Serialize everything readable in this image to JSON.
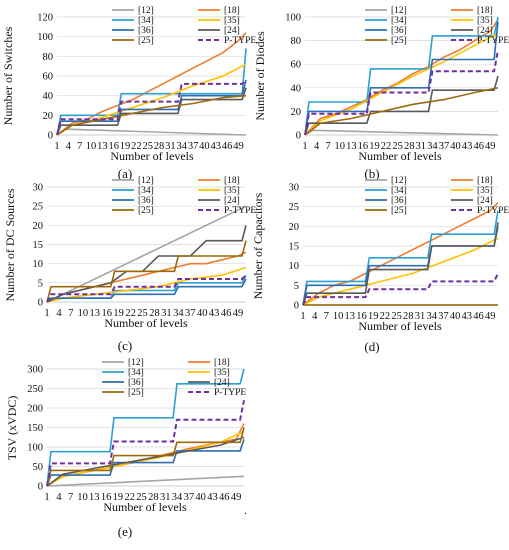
{
  "figure": {
    "stray_mark": "."
  },
  "legend_order": [
    "[12]",
    "[18]",
    "[34]",
    "[35]",
    "[36]",
    "[24]",
    "[25]",
    "P-TYPE"
  ],
  "colors": {
    "[12]": "#a5a5a5",
    "[18]": "#ed7d31",
    "[34]": "#2e9fd0",
    "[35]": "#ffc000",
    "[36]": "#2f6eb5",
    "[24]": "#595959",
    "[25]": "#9c6a0c",
    "P-TYPE": "#7030a0"
  },
  "x_tick_labels": [
    "1",
    "4",
    "7",
    "10",
    "13",
    "16",
    "19",
    "22",
    "25",
    "28",
    "31",
    "34",
    "37",
    "40",
    "43",
    "46",
    "49"
  ],
  "chart_data": [
    {
      "type": "line",
      "caption": "(a)",
      "xlabel": "Number of levels",
      "ylabel": "Number of Switches",
      "xlim": [
        1,
        51
      ],
      "ylim": [
        0,
        120
      ],
      "yticks": [
        0,
        20,
        40,
        60,
        80,
        100,
        120
      ],
      "series": [
        {
          "name": "[12]",
          "x": [
            1,
            3,
            51
          ],
          "y": [
            0,
            6,
            0
          ]
        },
        {
          "name": "[18]",
          "x": [
            1,
            5,
            9,
            13,
            17,
            21,
            25,
            29,
            33,
            37,
            41,
            45,
            49,
            51
          ],
          "y": [
            0,
            12,
            16,
            24,
            30,
            36,
            44,
            52,
            60,
            68,
            76,
            84,
            96,
            104
          ]
        },
        {
          "name": "[34]",
          "x": [
            1,
            2,
            17,
            18,
            50,
            51
          ],
          "y": [
            0,
            20,
            20,
            42,
            42,
            88
          ]
        },
        {
          "name": "[35]",
          "x": [
            1,
            5,
            13,
            21,
            29,
            37,
            45,
            51
          ],
          "y": [
            0,
            10,
            18,
            28,
            38,
            50,
            60,
            72
          ]
        },
        {
          "name": "[36]",
          "x": [
            1,
            2,
            17,
            18,
            33,
            34,
            50,
            51
          ],
          "y": [
            0,
            14,
            14,
            26,
            26,
            40,
            40,
            56
          ]
        },
        {
          "name": "[24]",
          "x": [
            1,
            2,
            17,
            18,
            33,
            34,
            50,
            51
          ],
          "y": [
            0,
            10,
            10,
            22,
            22,
            36,
            36,
            48
          ]
        },
        {
          "name": "[25]",
          "x": [
            1,
            5,
            13,
            21,
            29,
            37,
            45,
            51
          ],
          "y": [
            0,
            10,
            16,
            22,
            28,
            32,
            38,
            40
          ]
        },
        {
          "name": "P-TYPE",
          "x": [
            1,
            2,
            17,
            18,
            33,
            34,
            50,
            51
          ],
          "y": [
            0,
            16,
            16,
            34,
            34,
            52,
            52,
            56
          ]
        }
      ]
    },
    {
      "type": "line",
      "caption": "(b)",
      "xlabel": "Number of levels",
      "ylabel": "Number of Diodes",
      "xlim": [
        1,
        51
      ],
      "ylim": [
        0,
        100
      ],
      "yticks": [
        0,
        20,
        40,
        60,
        80,
        100
      ],
      "series": [
        {
          "name": "[12]",
          "x": [
            1,
            3,
            51
          ],
          "y": [
            0,
            4,
            0
          ]
        },
        {
          "name": "[18]",
          "x": [
            1,
            5,
            9,
            13,
            17,
            21,
            25,
            29,
            33,
            37,
            41,
            45,
            49,
            51
          ],
          "y": [
            0,
            14,
            18,
            24,
            30,
            38,
            44,
            52,
            58,
            66,
            72,
            80,
            88,
            98
          ]
        },
        {
          "name": "[34]",
          "x": [
            1,
            2,
            17,
            18,
            33,
            34,
            50,
            51
          ],
          "y": [
            0,
            28,
            28,
            56,
            56,
            84,
            84,
            100
          ]
        },
        {
          "name": "[35]",
          "x": [
            1,
            5,
            13,
            21,
            29,
            37,
            45,
            51
          ],
          "y": [
            0,
            12,
            22,
            36,
            50,
            62,
            76,
            86
          ]
        },
        {
          "name": "[36]",
          "x": [
            1,
            2,
            17,
            18,
            33,
            34,
            50,
            51
          ],
          "y": [
            0,
            20,
            20,
            40,
            40,
            64,
            64,
            96
          ]
        },
        {
          "name": "[24]",
          "x": [
            1,
            2,
            17,
            18,
            33,
            34,
            50,
            51
          ],
          "y": [
            0,
            10,
            10,
            20,
            20,
            38,
            38,
            50
          ]
        },
        {
          "name": "[25]",
          "x": [
            1,
            5,
            13,
            21,
            29,
            37,
            45,
            51
          ],
          "y": [
            0,
            10,
            14,
            20,
            26,
            30,
            36,
            40
          ]
        },
        {
          "name": "P-TYPE",
          "x": [
            1,
            2,
            17,
            18,
            33,
            34,
            50,
            51
          ],
          "y": [
            0,
            18,
            18,
            36,
            36,
            54,
            54,
            72
          ]
        }
      ]
    },
    {
      "type": "line",
      "caption": "(c)",
      "xlabel": "Number of levels",
      "ylabel": "Number of DC Sources",
      "xlim": [
        1,
        51
      ],
      "ylim": [
        0,
        30
      ],
      "yticks": [
        0,
        5,
        10,
        15,
        20,
        25,
        30
      ],
      "series": [
        {
          "name": "[12]",
          "x": [
            1,
            51
          ],
          "y": [
            0,
            25
          ]
        },
        {
          "name": "[18]",
          "x": [
            1,
            5,
            9,
            13,
            17,
            21,
            25,
            29,
            33,
            37,
            41,
            45,
            49,
            51
          ],
          "y": [
            0,
            2,
            3,
            4,
            5,
            6,
            7,
            8,
            9,
            10,
            10,
            11,
            12,
            13
          ]
        },
        {
          "name": "[34]",
          "x": [
            1,
            2,
            17,
            18,
            33,
            34,
            50,
            51
          ],
          "y": [
            0,
            1,
            1,
            3,
            3,
            5,
            5,
            7
          ]
        },
        {
          "name": "[35]",
          "x": [
            1,
            5,
            13,
            21,
            29,
            37,
            45,
            51
          ],
          "y": [
            0,
            1,
            2,
            3,
            4,
            6,
            7,
            9
          ]
        },
        {
          "name": "[36]",
          "x": [
            1,
            2,
            17,
            18,
            33,
            34,
            50,
            51
          ],
          "y": [
            0,
            1,
            1,
            2,
            2,
            4,
            4,
            6
          ]
        },
        {
          "name": "[24]",
          "x": [
            1,
            5,
            9,
            13,
            17,
            21,
            25,
            29,
            33,
            37,
            41,
            45,
            50,
            51
          ],
          "y": [
            0,
            2,
            3,
            4,
            5,
            8,
            8,
            12,
            12,
            12,
            16,
            16,
            16,
            20
          ]
        },
        {
          "name": "[25]",
          "x": [
            1,
            2,
            17,
            18,
            33,
            34,
            50,
            51
          ],
          "y": [
            0,
            4,
            4,
            8,
            8,
            12,
            12,
            16
          ]
        },
        {
          "name": "P-TYPE",
          "x": [
            1,
            2,
            17,
            18,
            33,
            34,
            50,
            51
          ],
          "y": [
            0,
            2,
            2,
            4,
            4,
            6,
            6,
            7
          ]
        }
      ]
    },
    {
      "type": "line",
      "caption": "(d)",
      "xlabel": "Number of levels",
      "ylabel": "Number of Capacitors",
      "xlim": [
        1,
        51
      ],
      "ylim": [
        0,
        30
      ],
      "yticks": [
        0,
        5,
        10,
        15,
        20,
        25,
        30
      ],
      "series": [
        {
          "name": "[12]",
          "x": [
            1,
            51
          ],
          "y": [
            0,
            0
          ]
        },
        {
          "name": "[18]",
          "x": [
            1,
            5,
            9,
            13,
            17,
            21,
            25,
            29,
            33,
            37,
            41,
            45,
            49,
            51
          ],
          "y": [
            0,
            3,
            5,
            6,
            8,
            10,
            12,
            14,
            16,
            18,
            20,
            22,
            24,
            26
          ]
        },
        {
          "name": "[34]",
          "x": [
            1,
            2,
            17,
            18,
            33,
            34,
            50,
            51
          ],
          "y": [
            0,
            6,
            6,
            12,
            12,
            18,
            18,
            24
          ]
        },
        {
          "name": "[35]",
          "x": [
            1,
            5,
            13,
            21,
            29,
            37,
            45,
            51
          ],
          "y": [
            0,
            2,
            4,
            6,
            8,
            11,
            14,
            17
          ]
        },
        {
          "name": "[36]",
          "x": [
            1,
            2,
            17,
            18,
            33,
            34,
            50,
            51
          ],
          "y": [
            0,
            5,
            5,
            10,
            10,
            15,
            15,
            20
          ]
        },
        {
          "name": "[24]",
          "x": [
            1,
            2,
            17,
            18,
            33,
            34,
            50,
            51
          ],
          "y": [
            0,
            3,
            3,
            9,
            9,
            15,
            15,
            21
          ]
        },
        {
          "name": "[25]",
          "x": [
            1,
            51
          ],
          "y": [
            0,
            0
          ]
        },
        {
          "name": "P-TYPE",
          "x": [
            1,
            2,
            17,
            18,
            33,
            34,
            50,
            51
          ],
          "y": [
            0,
            2,
            2,
            4,
            4,
            6,
            6,
            8
          ]
        }
      ]
    },
    {
      "type": "line",
      "caption": "(e)",
      "xlabel": "Number of levels",
      "ylabel": "TSV (xVDC)",
      "xlim": [
        1,
        51
      ],
      "ylim": [
        0,
        300
      ],
      "yticks": [
        0,
        50,
        100,
        150,
        200,
        250,
        300
      ],
      "series": [
        {
          "name": "[12]",
          "x": [
            1,
            51
          ],
          "y": [
            0,
            25
          ]
        },
        {
          "name": "[18]",
          "x": [
            1,
            5,
            9,
            13,
            17,
            21,
            25,
            29,
            33,
            37,
            41,
            45,
            49,
            51
          ],
          "y": [
            0,
            24,
            32,
            40,
            48,
            56,
            64,
            76,
            86,
            96,
            104,
            112,
            120,
            160
          ]
        },
        {
          "name": "[34]",
          "x": [
            1,
            2,
            17,
            18,
            33,
            34,
            50,
            51
          ],
          "y": [
            0,
            88,
            88,
            175,
            175,
            262,
            262,
            300
          ]
        },
        {
          "name": "[35]",
          "x": [
            1,
            5,
            13,
            21,
            29,
            37,
            45,
            51
          ],
          "y": [
            0,
            24,
            40,
            56,
            72,
            92,
            112,
            140
          ]
        },
        {
          "name": "[36]",
          "x": [
            1,
            2,
            17,
            18,
            33,
            34,
            50,
            51
          ],
          "y": [
            0,
            28,
            28,
            60,
            60,
            90,
            90,
            120
          ]
        },
        {
          "name": "[24]",
          "x": [
            1,
            5,
            13,
            21,
            29,
            37,
            45,
            51
          ],
          "y": [
            0,
            30,
            45,
            60,
            75,
            90,
            105,
            125
          ]
        },
        {
          "name": "[25]",
          "x": [
            1,
            2,
            17,
            18,
            33,
            34,
            50,
            51
          ],
          "y": [
            0,
            40,
            40,
            78,
            78,
            112,
            112,
            150
          ]
        },
        {
          "name": "P-TYPE",
          "x": [
            1,
            2,
            17,
            18,
            33,
            34,
            50,
            51
          ],
          "y": [
            0,
            58,
            58,
            114,
            114,
            170,
            170,
            220
          ]
        }
      ]
    }
  ]
}
